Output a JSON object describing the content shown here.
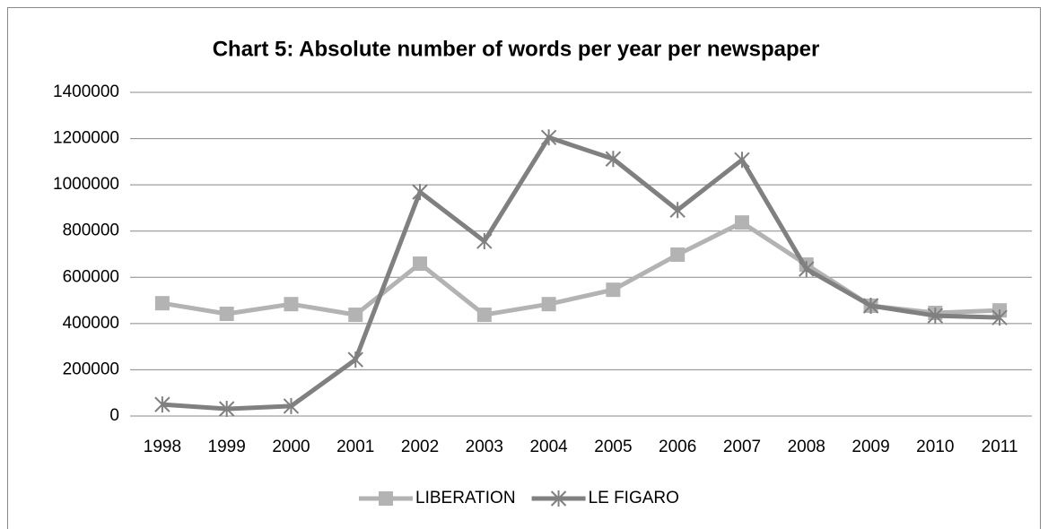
{
  "chart_data": {
    "type": "line",
    "title": "Chart 5: Absolute number of words per year per newspaper",
    "categories": [
      "1998",
      "1999",
      "2000",
      "2001",
      "2002",
      "2003",
      "2004",
      "2005",
      "2006",
      "2007",
      "2008",
      "2009",
      "2010",
      "2011"
    ],
    "series": [
      {
        "name": "LIBERATION",
        "color": "#b3b3b3",
        "marker": "square",
        "values": [
          488000,
          442000,
          484000,
          438000,
          659000,
          438000,
          484000,
          546000,
          698000,
          837000,
          655000,
          477000,
          446000,
          457000
        ]
      },
      {
        "name": "LE FIGARO",
        "color": "#808080",
        "marker": "star",
        "values": [
          50000,
          31000,
          43000,
          244000,
          969000,
          756000,
          1205000,
          1112000,
          891000,
          1108000,
          636000,
          477000,
          434000,
          426000
        ]
      }
    ],
    "ylim": [
      0,
      1400000
    ],
    "yticks": [
      0,
      200000,
      400000,
      600000,
      800000,
      1000000,
      1200000,
      1400000
    ],
    "grid": true,
    "legend": "bottom"
  }
}
